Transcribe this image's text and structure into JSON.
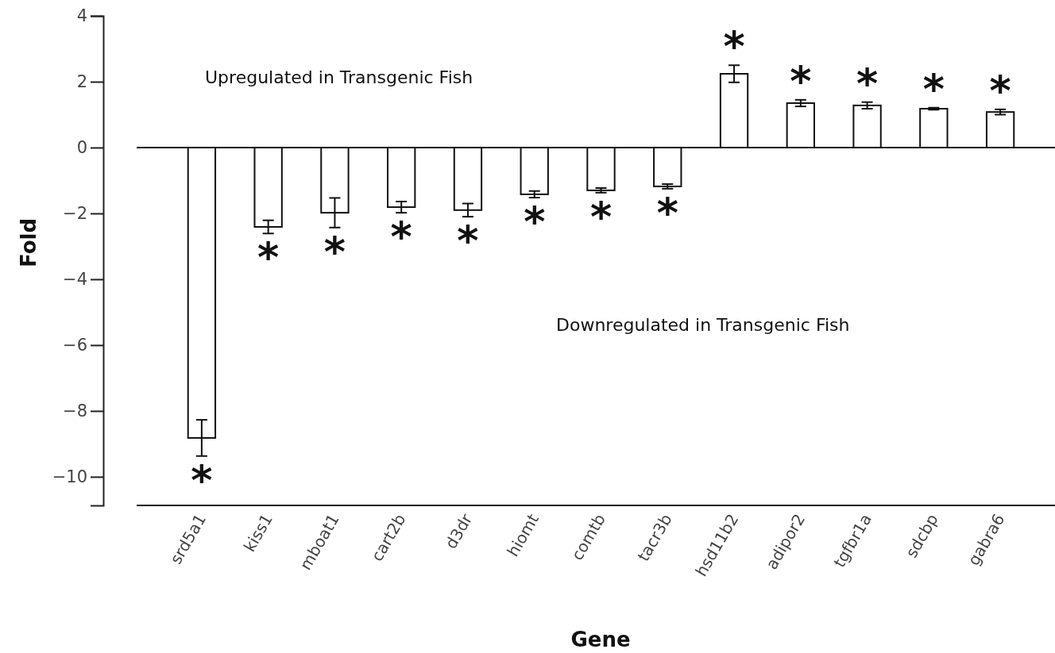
{
  "chart_data": {
    "type": "bar",
    "xlabel": "Gene",
    "ylabel": "Fold",
    "categories": [
      "srd5a1",
      "kiss1",
      "mboat1",
      "cart2b",
      "d3dr",
      "hiomt",
      "comtb",
      "tacr3b",
      "hsd11b2",
      "adipor2",
      "tgfbr1a",
      "sdcbp",
      "gabra6"
    ],
    "values": [
      -8.82,
      -2.41,
      -1.98,
      -1.81,
      -1.9,
      -1.42,
      -1.3,
      -1.18,
      2.24,
      1.35,
      1.28,
      1.18,
      1.08
    ],
    "errors": [
      0.55,
      0.2,
      0.45,
      0.17,
      0.2,
      0.1,
      0.07,
      0.07,
      0.26,
      0.1,
      0.1,
      0.03,
      0.08
    ],
    "color": "#ffffff",
    "ylim": [
      -10.87,
      4
    ],
    "yticks": [
      -10,
      -8,
      -6,
      -4,
      -2,
      0,
      2,
      4
    ],
    "annotations": [
      "Upregulated in Transgenic Fish",
      "Downregulated in Transgenic Fish",
      "*",
      "*",
      "*",
      "*",
      "*",
      "*",
      "*",
      "*",
      "*",
      "*",
      "*",
      "*",
      "*"
    ]
  }
}
